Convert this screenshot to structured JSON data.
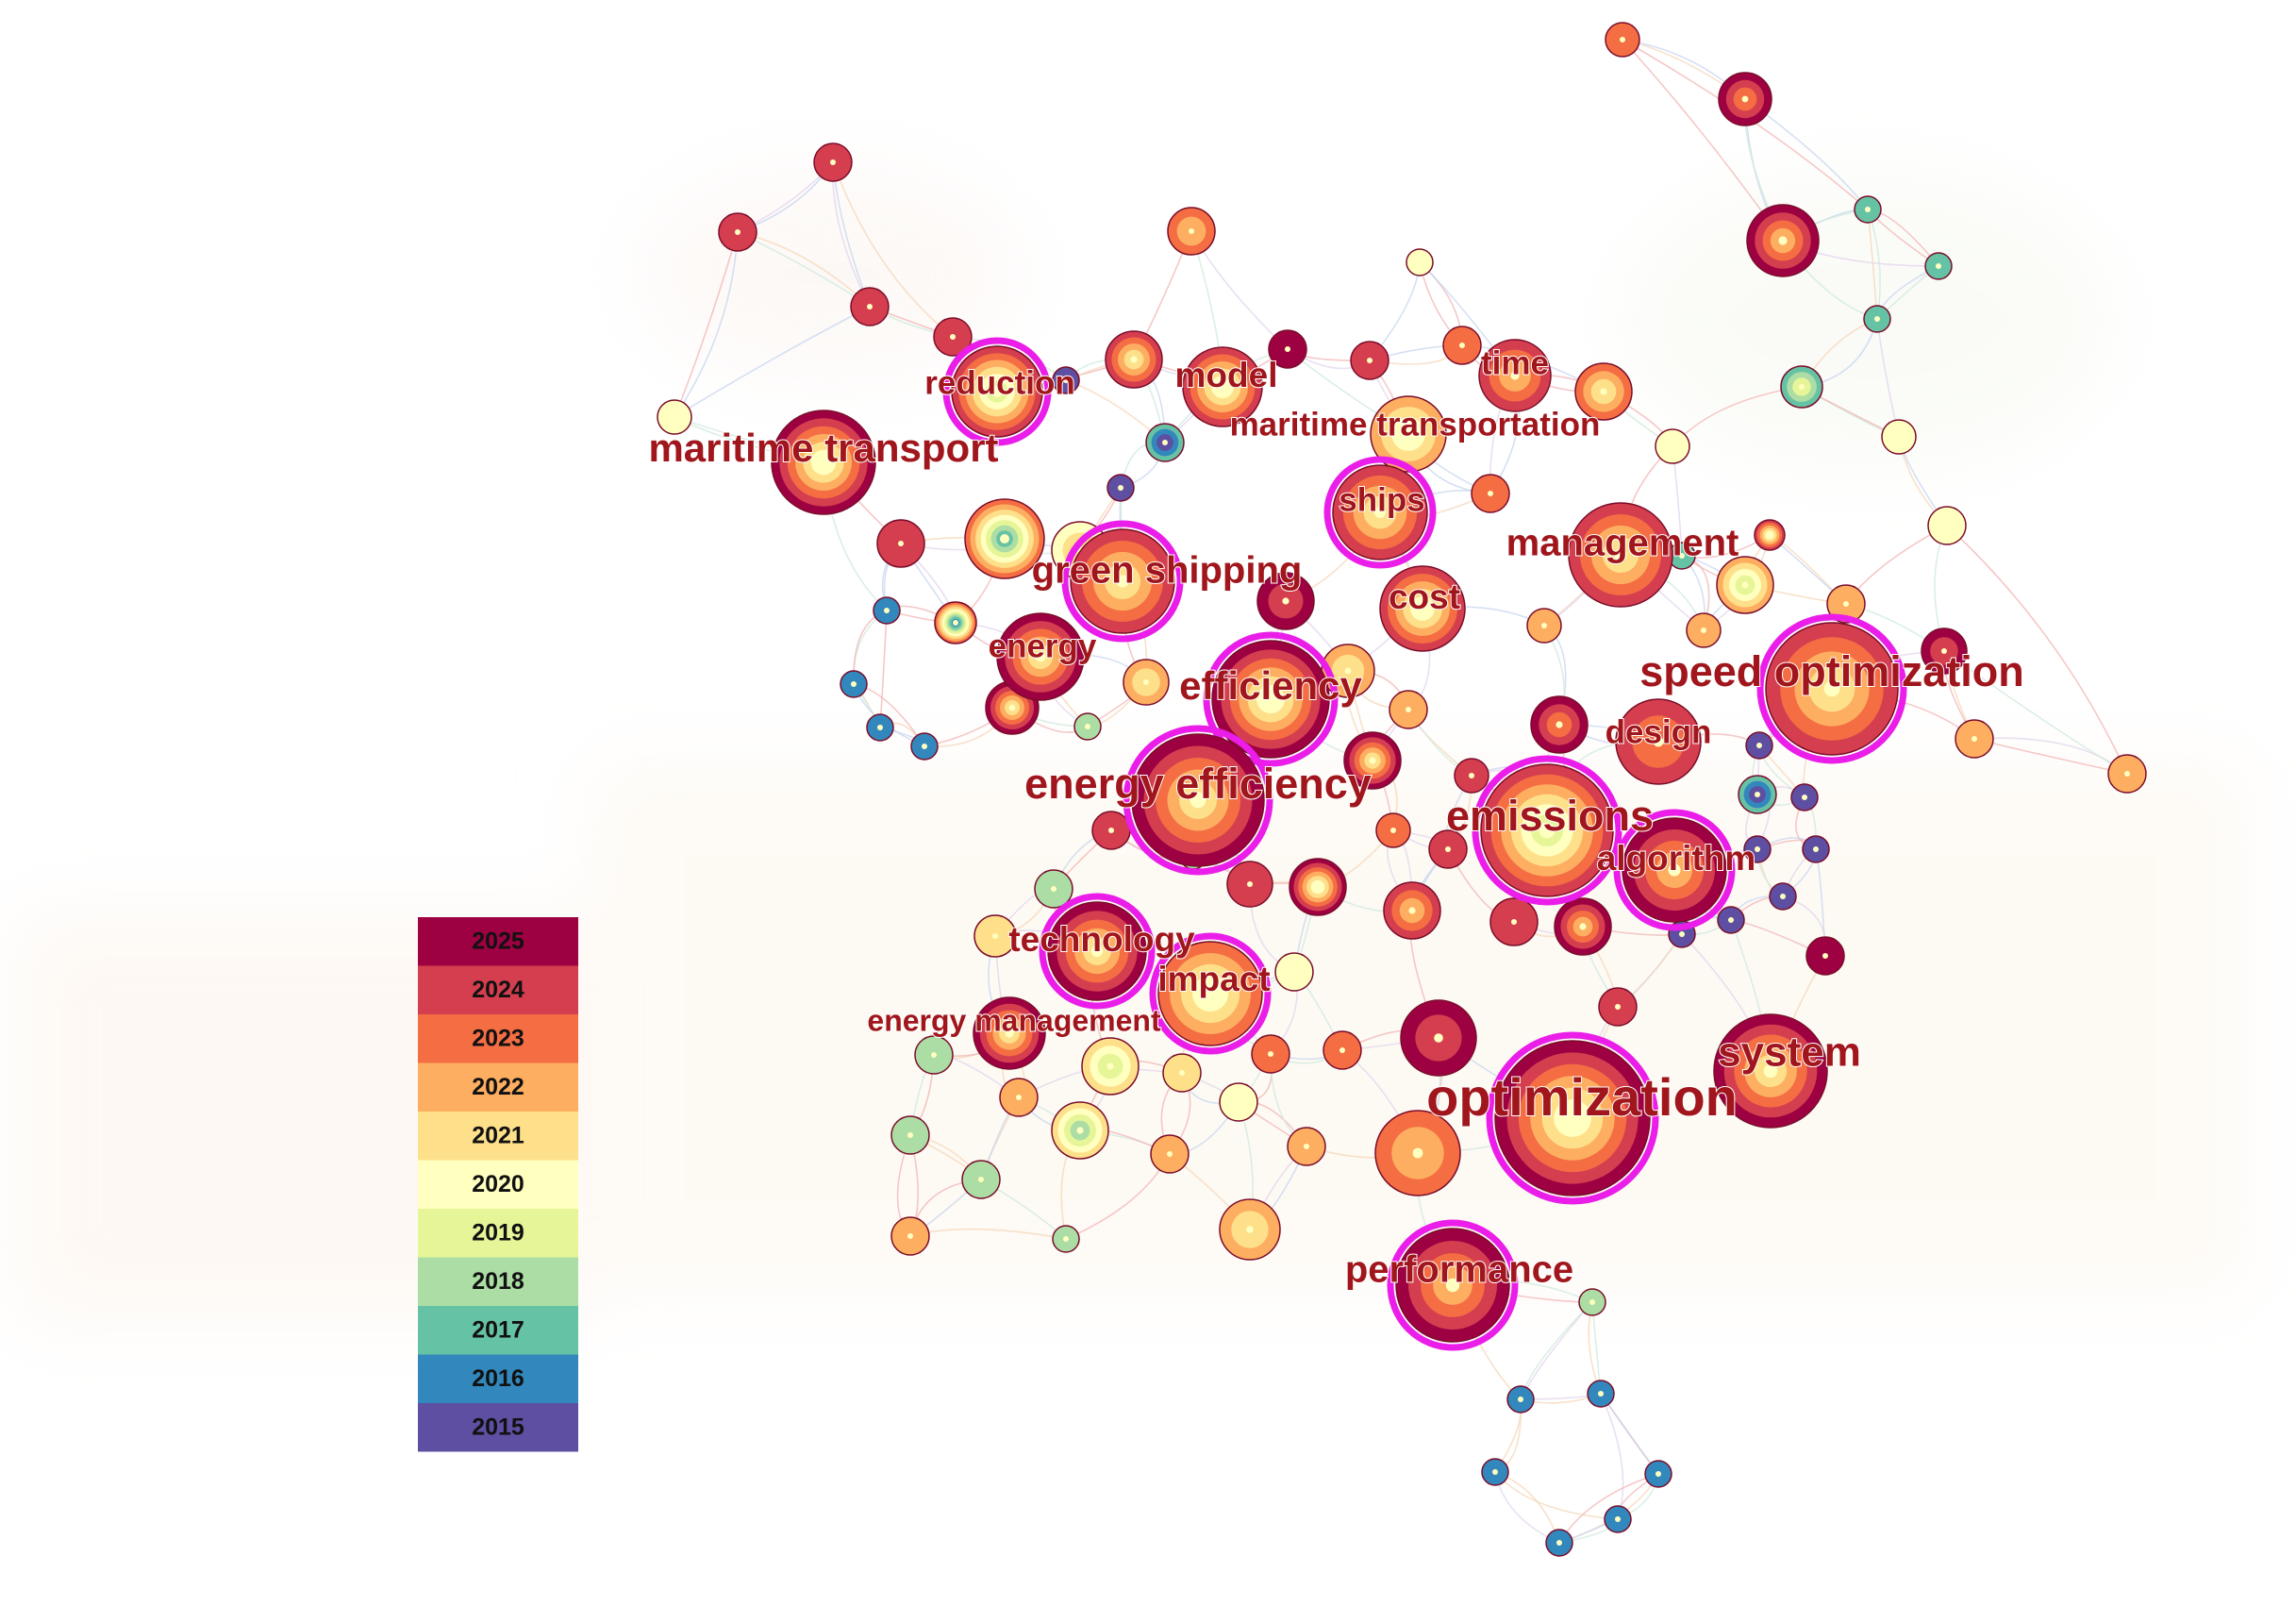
{
  "legend": {
    "years": [
      "2025",
      "2024",
      "2023",
      "2022",
      "2021",
      "2020",
      "2019",
      "2018",
      "2017",
      "2016",
      "2015"
    ],
    "colors": [
      "#9e0142",
      "#d53e4f",
      "#f46d43",
      "#fdae61",
      "#fee08b",
      "#ffffbf",
      "#e6f598",
      "#abdda4",
      "#66c2a5",
      "#3288bd",
      "#5e4fa2"
    ]
  },
  "keywords": [
    {
      "label": "maritime transport",
      "year": "2025",
      "burst": false
    },
    {
      "label": "reduction",
      "year": "2024",
      "burst": true
    },
    {
      "label": "model",
      "year": "2024",
      "burst": false
    },
    {
      "label": "time",
      "year": "2024",
      "burst": false
    },
    {
      "label": "maritime transportation",
      "year": "2022",
      "burst": false
    },
    {
      "label": "ships",
      "year": "2024",
      "burst": true
    },
    {
      "label": "management",
      "year": "2024",
      "burst": false
    },
    {
      "label": "green shipping",
      "year": "2024",
      "burst": true
    },
    {
      "label": "cost",
      "year": "2024",
      "burst": false
    },
    {
      "label": "energy",
      "year": "2025",
      "burst": false
    },
    {
      "label": "efficiency",
      "year": "2025",
      "burst": true
    },
    {
      "label": "speed optimization",
      "year": "2024",
      "burst": true
    },
    {
      "label": "design",
      "year": "2024",
      "burst": false
    },
    {
      "label": "energy efficiency",
      "year": "2025",
      "burst": true
    },
    {
      "label": "emissions",
      "year": "2024",
      "burst": true
    },
    {
      "label": "algorithm",
      "year": "2025",
      "burst": true
    },
    {
      "label": "technology",
      "year": "2025",
      "burst": true
    },
    {
      "label": "impact",
      "year": "2023",
      "burst": true
    },
    {
      "label": "energy management",
      "year": "2025",
      "burst": false
    },
    {
      "label": "system",
      "year": "2025",
      "burst": false
    },
    {
      "label": "optimization",
      "year": "2025",
      "burst": true
    },
    {
      "label": "performance",
      "year": "2025",
      "burst": true
    }
  ]
}
